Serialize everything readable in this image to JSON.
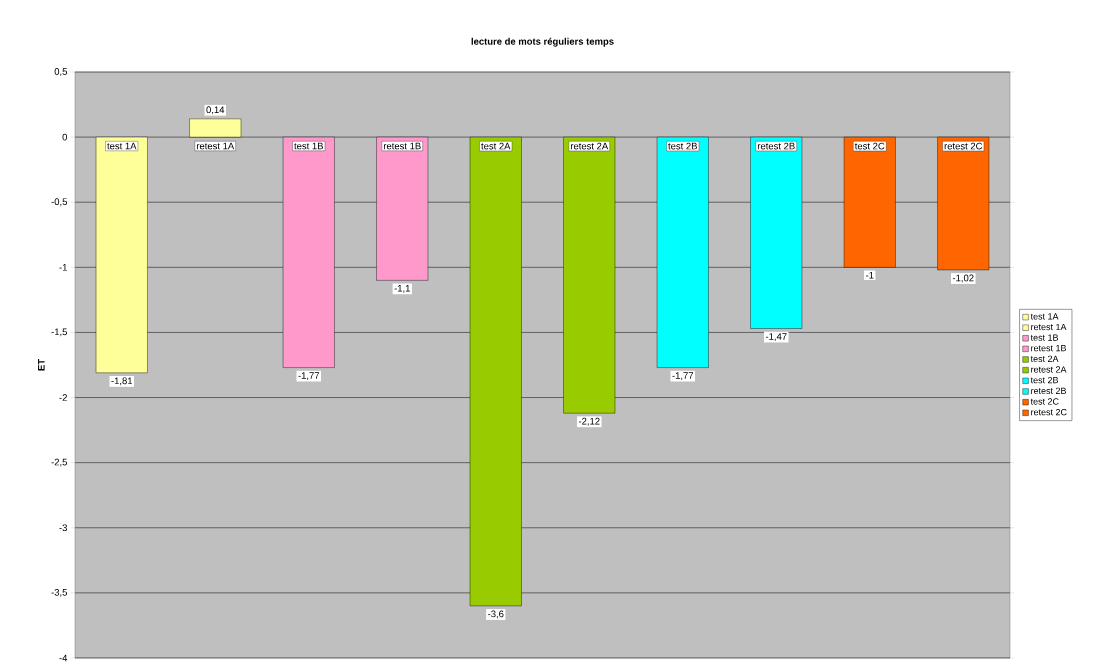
{
  "chart_data": {
    "type": "bar",
    "title": "lecture de mots réguliers temps",
    "ylabel": "ET",
    "categories": [
      "test 1A",
      "retest 1A",
      "test 1B",
      "retest 1B",
      "test 2A",
      "retest 2A",
      "test 2B",
      "retest 2B",
      "test 2C",
      "retest 2C"
    ],
    "series": [
      {
        "name": "test 1A",
        "color": "#ffff99",
        "values": [
          -1.81,
          null,
          null,
          null,
          null,
          null,
          null,
          null,
          null,
          null
        ],
        "value_labels": [
          "-1,81",
          null,
          null,
          null,
          null,
          null,
          null,
          null,
          null,
          null
        ]
      },
      {
        "name": "retest 1A",
        "color": "#ffff99",
        "values": [
          null,
          0.14,
          null,
          null,
          null,
          null,
          null,
          null,
          null,
          null
        ],
        "value_labels": [
          null,
          "0,14",
          null,
          null,
          null,
          null,
          null,
          null,
          null,
          null
        ]
      },
      {
        "name": "test 1B",
        "color": "#ff99cc",
        "values": [
          null,
          null,
          -1.77,
          null,
          null,
          null,
          null,
          null,
          null,
          null
        ],
        "value_labels": [
          null,
          null,
          "-1,77",
          null,
          null,
          null,
          null,
          null,
          null,
          null
        ]
      },
      {
        "name": "retest 1B",
        "color": "#ff99cc",
        "values": [
          null,
          null,
          null,
          -1.1,
          null,
          null,
          null,
          null,
          null,
          null
        ],
        "value_labels": [
          null,
          null,
          null,
          "-1,1",
          null,
          null,
          null,
          null,
          null,
          null
        ]
      },
      {
        "name": "test 2A",
        "color": "#99cc00",
        "values": [
          null,
          null,
          null,
          null,
          -3.6,
          null,
          null,
          null,
          null,
          null
        ],
        "value_labels": [
          null,
          null,
          null,
          null,
          "-3,6",
          null,
          null,
          null,
          null,
          null
        ]
      },
      {
        "name": "retest 2A",
        "color": "#99cc00",
        "values": [
          null,
          null,
          null,
          null,
          null,
          -2.12,
          null,
          null,
          null,
          null
        ],
        "value_labels": [
          null,
          null,
          null,
          null,
          null,
          "-2,12",
          null,
          null,
          null,
          null
        ]
      },
      {
        "name": "test 2B",
        "color": "#00ffff",
        "values": [
          null,
          null,
          null,
          null,
          null,
          null,
          -1.77,
          null,
          null,
          null
        ],
        "value_labels": [
          null,
          null,
          null,
          null,
          null,
          null,
          "-1,77",
          null,
          null,
          null
        ]
      },
      {
        "name": "retest 2B",
        "color": "#00ffff",
        "values": [
          null,
          null,
          null,
          null,
          null,
          null,
          null,
          -1.47,
          null,
          null
        ],
        "value_labels": [
          null,
          null,
          null,
          null,
          null,
          null,
          null,
          "-1,47",
          null,
          null
        ]
      },
      {
        "name": "test 2C",
        "color": "#ff6600",
        "values": [
          null,
          null,
          null,
          null,
          null,
          null,
          null,
          null,
          -1.0,
          null
        ],
        "value_labels": [
          null,
          null,
          null,
          null,
          null,
          null,
          null,
          null,
          "-1",
          null
        ]
      },
      {
        "name": "retest 2C",
        "color": "#ff6600",
        "values": [
          null,
          null,
          null,
          null,
          null,
          null,
          null,
          null,
          null,
          -1.02
        ],
        "value_labels": [
          null,
          null,
          null,
          null,
          null,
          null,
          null,
          null,
          null,
          "-1,02"
        ]
      }
    ],
    "ylim": [
      -4,
      0.5
    ],
    "yticks": [
      {
        "value": 0.5,
        "label": "0,5"
      },
      0,
      {
        "value": -0.5,
        "label": "-0,5"
      },
      -1,
      {
        "value": -1.5,
        "label": "-1,5"
      },
      -2,
      {
        "value": -2.5,
        "label": "-2,5"
      },
      -3,
      {
        "value": -3.5,
        "label": "-3,5"
      },
      -4
    ],
    "grid": "y",
    "legend": "right"
  }
}
